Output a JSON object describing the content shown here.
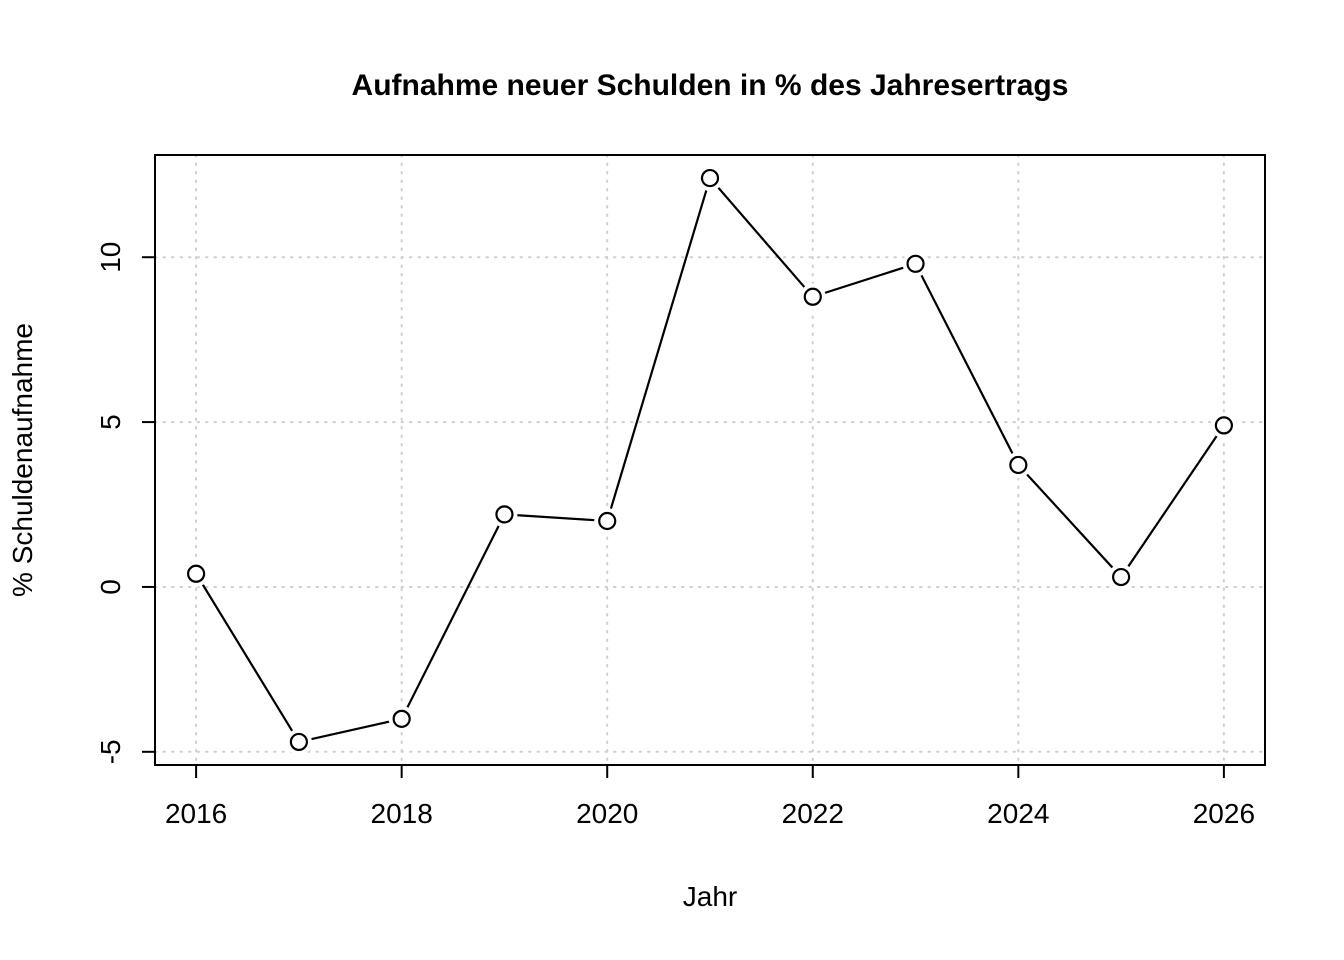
{
  "chart_data": {
    "type": "line",
    "title": "Aufnahme neuer Schulden in % des Jahresertrags",
    "xlabel": "Jahr",
    "ylabel": "% Schuldenaufnahme",
    "x": [
      2016,
      2017,
      2018,
      2019,
      2020,
      2021,
      2022,
      2023,
      2024,
      2025,
      2026
    ],
    "values": [
      0.4,
      -4.7,
      -4.0,
      2.2,
      2.0,
      12.4,
      8.8,
      9.8,
      3.7,
      0.3,
      4.9
    ],
    "xticks": [
      2016,
      2018,
      2020,
      2022,
      2024,
      2026
    ],
    "yticks": [
      -5,
      0,
      5,
      10
    ],
    "xtick_labels": [
      "2016",
      "2018",
      "2020",
      "2022",
      "2024",
      "2026"
    ],
    "ytick_labels": [
      "-5",
      "0",
      "5",
      "10"
    ],
    "xlim": [
      2015.6,
      2026.4
    ],
    "ylim": [
      -5.4,
      13.1
    ],
    "grid": true,
    "marker": "open-circle",
    "series_color": "#000000",
    "grid_color": "#cfcfcf",
    "box_color": "#000000",
    "background_color": "#ffffff"
  }
}
